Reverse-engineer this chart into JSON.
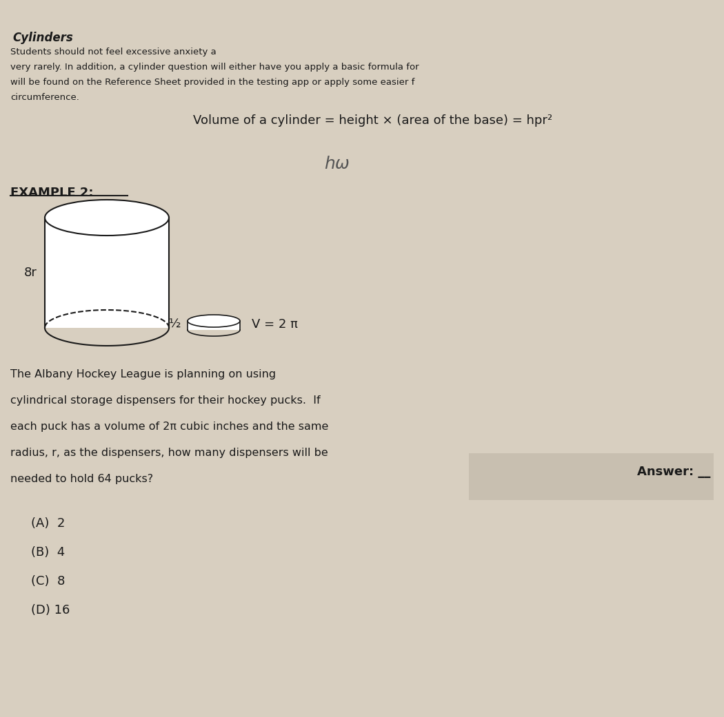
{
  "bg_color": "#d8cfc0",
  "bg_color_answer_box": "#c8bfb0",
  "title": "Cylinders",
  "header_lines": [
    "Students should not feel excessive anxiety a",
    "very rarely. In addition, a cylinder question will either have you apply a basic formula for ",
    "will be found on the Reference Sheet provided in the testing app or apply some easier f",
    "circumference."
  ],
  "formula_text": "Volume of a cylinder = height × (area of the base) = hpr²",
  "handwriting_text": "hω",
  "example_label": "EXAMPLE 2:",
  "label_8r": "8r",
  "label_half": "½",
  "label_v": "V = 2 π",
  "problem_text": "The Albany Hockey League is planning on using\ncylindrical storage dispensers for their hockey pucks.  If\neach puck has a volume of 2π cubic inches and the same\nradius, r, as the dispensers, how many dispensers will be\nneeded to hold 64 pucks?",
  "answer_label": "Answer: __",
  "choices": [
    "(A)  2",
    "(B)  4",
    "(C)  8",
    "(D) 16"
  ],
  "text_color": "#1a1a1a",
  "handwriting_color": "#555555"
}
